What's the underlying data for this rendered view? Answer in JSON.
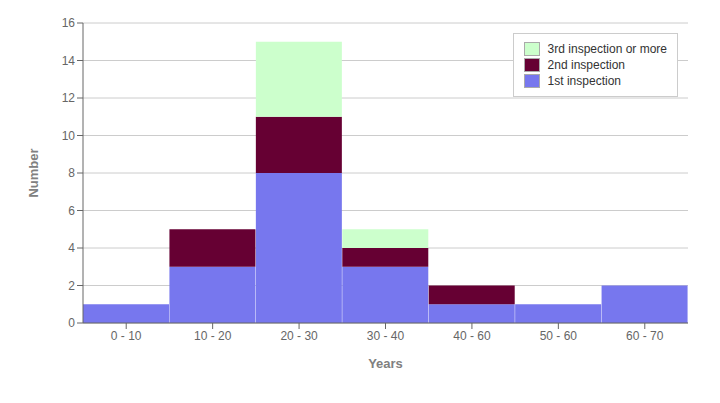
{
  "chart_data": {
    "type": "bar",
    "stacked": true,
    "categories": [
      "0 - 10",
      "10 - 20",
      "20 - 30",
      "30 - 40",
      "40 - 60",
      "50 - 60",
      "60 - 70"
    ],
    "series": [
      {
        "name": "1st inspection",
        "color": "#7777ee",
        "values": [
          1,
          3,
          8,
          3,
          1,
          1,
          2
        ]
      },
      {
        "name": "2nd inspection",
        "color": "#660033",
        "values": [
          0,
          2,
          3,
          1,
          1,
          0,
          0
        ]
      },
      {
        "name": "3rd inspection or more",
        "color": "#ccffcc",
        "values": [
          0,
          0,
          4,
          1,
          0,
          0,
          0
        ]
      }
    ],
    "xlabel": "Years",
    "ylabel": "Number",
    "ylim": [
      0,
      16
    ],
    "yticks": [
      0,
      2,
      4,
      6,
      8,
      10,
      12,
      14,
      16
    ],
    "grid": true,
    "legend": "upper right"
  }
}
